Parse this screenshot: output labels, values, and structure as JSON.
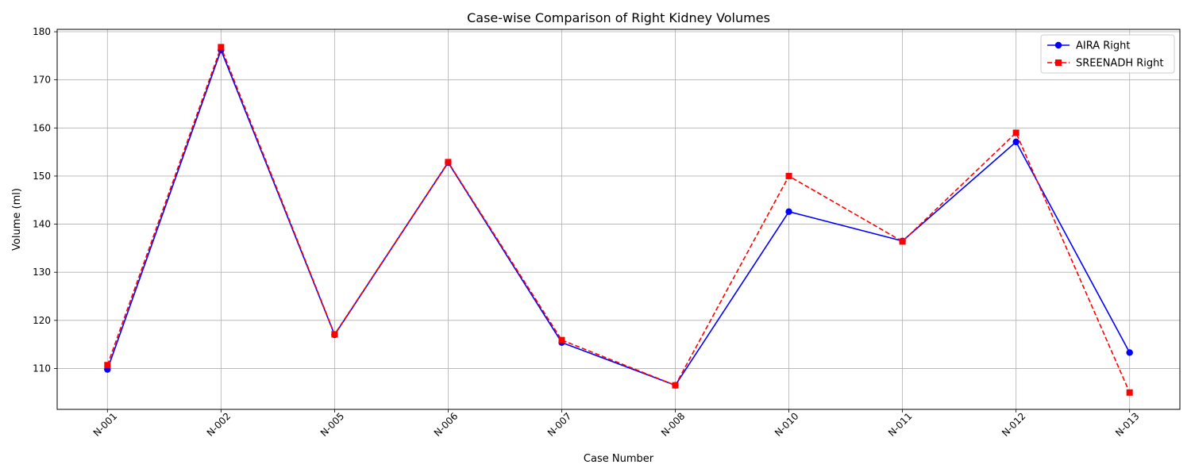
{
  "chart_data": {
    "type": "line",
    "title": "Case-wise Comparison of Right Kidney Volumes",
    "xlabel": "Case Number",
    "ylabel": "Volume (ml)",
    "categories": [
      "N-001",
      "N-002",
      "N-005",
      "N-006",
      "N-007",
      "N-008",
      "N-010",
      "N-011",
      "N-012",
      "N-013"
    ],
    "ylim": [
      101.5,
      180.5
    ],
    "yticks": [
      110,
      120,
      130,
      140,
      150,
      160,
      170,
      180
    ],
    "grid": true,
    "legend_position": "top-right",
    "series": [
      {
        "name": "AIRA Right",
        "color": "#0000ff",
        "line_style": "solid",
        "marker": "circle",
        "values": [
          109.8,
          176.2,
          117.0,
          152.8,
          115.4,
          106.5,
          142.6,
          136.5,
          157.1,
          113.3
        ]
      },
      {
        "name": "SREENADH Right",
        "color": "#ff0000",
        "line_style": "dashed",
        "marker": "square",
        "values": [
          110.7,
          176.8,
          117.1,
          152.9,
          115.9,
          106.5,
          150.0,
          136.4,
          159.0,
          105.0
        ]
      }
    ]
  }
}
